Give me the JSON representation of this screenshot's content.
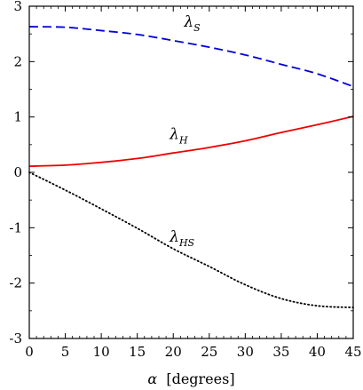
{
  "chart_data": {
    "type": "line",
    "title": "",
    "xlabel_symbol": "α",
    "xlabel_unit": "[degrees]",
    "ylabel": "",
    "xlim": [
      0,
      45
    ],
    "ylim": [
      -3,
      3
    ],
    "xticks": [
      0,
      5,
      10,
      15,
      20,
      25,
      30,
      35,
      40,
      45
    ],
    "yticks": [
      -3,
      -2,
      -1,
      0,
      1,
      2,
      3
    ],
    "grid": false,
    "series": [
      {
        "key": "lambda_S",
        "style": "dashed",
        "color": "#0000dd",
        "x": [
          0,
          5,
          10,
          15,
          20,
          25,
          30,
          35,
          40,
          45
        ],
        "y": [
          2.63,
          2.62,
          2.56,
          2.49,
          2.38,
          2.26,
          2.12,
          1.95,
          1.78,
          1.55
        ]
      },
      {
        "key": "lambda_H",
        "style": "solid",
        "color": "#ee0000",
        "x": [
          0,
          5,
          10,
          15,
          20,
          25,
          30,
          35,
          40,
          45
        ],
        "y": [
          0.11,
          0.13,
          0.18,
          0.25,
          0.35,
          0.45,
          0.57,
          0.72,
          0.86,
          1.01
        ]
      },
      {
        "key": "lambda_HS",
        "style": "dotted",
        "color": "#000000",
        "x": [
          0,
          5,
          10,
          15,
          20,
          25,
          30,
          35,
          40,
          45
        ],
        "y": [
          0.0,
          -0.32,
          -0.66,
          -1.01,
          -1.38,
          -1.7,
          -2.03,
          -2.28,
          -2.41,
          -2.44
        ]
      }
    ],
    "annotations": [
      {
        "base": "λ",
        "sub": "S",
        "x": 21.5,
        "y": 2.63
      },
      {
        "base": "λ",
        "sub": "H",
        "x": 19.5,
        "y": 0.6
      },
      {
        "base": "λ",
        "sub": "HS",
        "x": 19.5,
        "y": -1.25
      }
    ]
  }
}
